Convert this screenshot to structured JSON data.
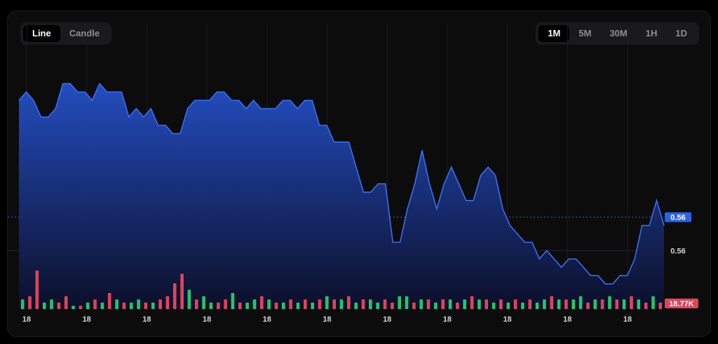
{
  "toolbar": {
    "chart_types": [
      {
        "label": "Line",
        "active": true
      },
      {
        "label": "Candle",
        "active": false
      }
    ],
    "intervals": [
      {
        "label": "1M",
        "active": true
      },
      {
        "label": "5M",
        "active": false
      },
      {
        "label": "30M",
        "active": false
      },
      {
        "label": "1H",
        "active": false
      },
      {
        "label": "1D",
        "active": false
      }
    ]
  },
  "colors": {
    "line": "#3b6ef0",
    "fill_top": "#2450c8",
    "fill_bottom": "#0c0f2a",
    "volume_up": "#27c46b",
    "volume_down": "#e0445a",
    "price_badge": "#2c63e6",
    "volume_badge": "#e0445a"
  },
  "chart_data": {
    "type": "area",
    "x_tick_labels": [
      "18",
      "18",
      "18",
      "18",
      "18",
      "18",
      "18",
      "18",
      "18",
      "18",
      "18"
    ],
    "y_labels": [
      {
        "value": 0.5602,
        "text": "0.56",
        "badge": true
      },
      {
        "value": 0.5598,
        "text": "0.56",
        "badge": false
      }
    ],
    "ylim": [
      0.5591,
      0.5625
    ],
    "price": [
      0.5616,
      0.5617,
      0.5616,
      0.5614,
      0.5614,
      0.5615,
      0.5618,
      0.5618,
      0.5617,
      0.5617,
      0.5616,
      0.5618,
      0.5617,
      0.5617,
      0.5617,
      0.5614,
      0.5615,
      0.5614,
      0.5615,
      0.5613,
      0.5613,
      0.5612,
      0.5612,
      0.5615,
      0.5616,
      0.5616,
      0.5616,
      0.5617,
      0.5617,
      0.5616,
      0.5616,
      0.5615,
      0.5616,
      0.5615,
      0.5615,
      0.5615,
      0.5616,
      0.5616,
      0.5615,
      0.5616,
      0.5616,
      0.5613,
      0.5613,
      0.5611,
      0.5611,
      0.5611,
      0.5608,
      0.5605,
      0.5605,
      0.5606,
      0.5606,
      0.5599,
      0.5599,
      0.5603,
      0.5606,
      0.561,
      0.5606,
      0.5603,
      0.5606,
      0.5608,
      0.5606,
      0.5604,
      0.5604,
      0.5607,
      0.5608,
      0.5607,
      0.5603,
      0.5601,
      0.56,
      0.5599,
      0.5599,
      0.5597,
      0.5598,
      0.5597,
      0.5596,
      0.5597,
      0.5597,
      0.5596,
      0.5595,
      0.5595,
      0.5594,
      0.5594,
      0.5595,
      0.5595,
      0.5597,
      0.5601,
      0.5601,
      0.5604,
      0.5601
    ],
    "volume": [
      3,
      4,
      12,
      2,
      3,
      2,
      4,
      1,
      1,
      2,
      3,
      2,
      5,
      3,
      2,
      2,
      3,
      2,
      2,
      3,
      4,
      8,
      11,
      6,
      3,
      4,
      2,
      2,
      3,
      5,
      2,
      2,
      3,
      4,
      3,
      2,
      2,
      3,
      2,
      3,
      2,
      3,
      4,
      3,
      3,
      4,
      2,
      3,
      3,
      2,
      3,
      2,
      4,
      4,
      2,
      3,
      3,
      2,
      3,
      3,
      2,
      3,
      4,
      3,
      3,
      2,
      3,
      2,
      3,
      2,
      3,
      2,
      3,
      4,
      3,
      3,
      3,
      4,
      2,
      3,
      3,
      4,
      3,
      3,
      4,
      3,
      2,
      4,
      2
    ],
    "volume_dir": [
      "u",
      "d",
      "d",
      "u",
      "u",
      "d",
      "d",
      "u",
      "d",
      "u",
      "d",
      "u",
      "d",
      "u",
      "d",
      "u",
      "u",
      "d",
      "u",
      "d",
      "d",
      "d",
      "d",
      "u",
      "d",
      "u",
      "u",
      "d",
      "d",
      "u",
      "d",
      "u",
      "u",
      "d",
      "u",
      "d",
      "u",
      "d",
      "u",
      "d",
      "u",
      "d",
      "u",
      "d",
      "u",
      "d",
      "u",
      "d",
      "u",
      "u",
      "d",
      "d",
      "u",
      "u",
      "d",
      "u",
      "d",
      "u",
      "d",
      "u",
      "d",
      "u",
      "d",
      "u",
      "d",
      "u",
      "d",
      "u",
      "d",
      "u",
      "d",
      "u",
      "u",
      "d",
      "u",
      "d",
      "u",
      "u",
      "d",
      "u",
      "d",
      "u",
      "d",
      "u",
      "d",
      "u",
      "d",
      "u",
      "d"
    ],
    "last_volume_label": "18.77K"
  }
}
